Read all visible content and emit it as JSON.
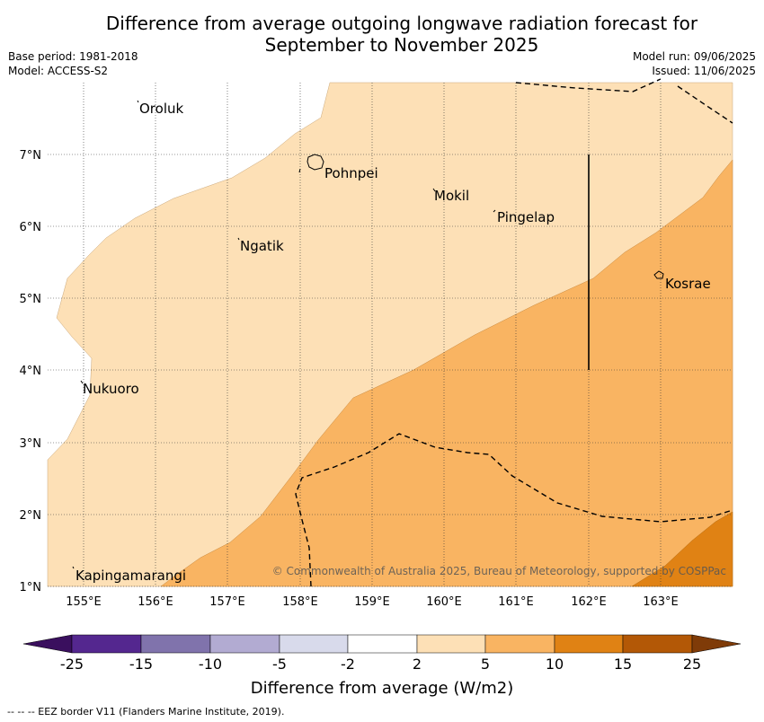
{
  "title_line1": "Difference from average outgoing longwave radiation forecast for",
  "title_line2": "September to November 2025",
  "base_period": "Base period: 1981-2018",
  "model": "Model: ACCESS-S2",
  "model_run": "Model run: 09/06/2025",
  "issued": "Issued: 11/06/2025",
  "copyright": "© Commonwealth of Australia 2025, Bureau of Meteorology, supported by COSPPac",
  "lon_labels": [
    "155°E",
    "156°E",
    "157°E",
    "158°E",
    "159°E",
    "160°E",
    "161°E",
    "162°E",
    "163°E"
  ],
  "lat_labels": [
    "7°N",
    "6°N",
    "5°N",
    "4°N",
    "3°N",
    "2°N",
    "1°N"
  ],
  "places": [
    "Oroluk",
    "Pohnpei",
    "Mokil",
    "Pingelap",
    "Ngatik",
    "Kosrae",
    "Nukuoro",
    "Kapingamarangi"
  ],
  "colorbar": {
    "colors": [
      "#3a0f5e",
      "#54278f",
      "#8073ac",
      "#b2abd2",
      "#d8daeb",
      "#ffffff",
      "#fde0b6",
      "#f9b462",
      "#e08214",
      "#b35806",
      "#7f3b08"
    ],
    "tick_labels": [
      "-25",
      "-15",
      "-10",
      "-5",
      "-2",
      "2",
      "5",
      "10",
      "15",
      "25"
    ],
    "label": "Difference from average (W/m2)"
  },
  "legend_line": "--  --  -- EEZ border V11 (Flanders Marine Institute, 2019)."
}
